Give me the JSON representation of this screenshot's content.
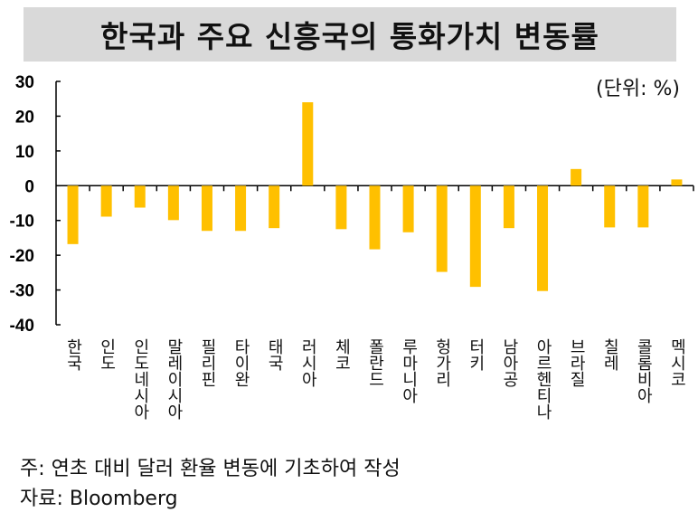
{
  "chart_data": {
    "type": "bar",
    "title": "한국과 주요 신흥국의 통화가치 변동률",
    "unit_label": "(단위: %)",
    "categories": [
      "한국",
      "인도",
      "인도네시아",
      "말레이시아",
      "필리핀",
      "타이완",
      "태국",
      "러시아",
      "체코",
      "폴란드",
      "루마니아",
      "헝가리",
      "터키",
      "남아공",
      "아르헨티나",
      "브라질",
      "칠레",
      "콜롬비아",
      "멕시코"
    ],
    "values": [
      -16.8,
      -8.9,
      -6.3,
      -9.9,
      -13.0,
      -13.0,
      -12.2,
      24.0,
      -12.5,
      -18.3,
      -13.4,
      -24.8,
      -29.1,
      -12.2,
      -30.3,
      4.8,
      -12.0,
      -12.0,
      1.8
    ],
    "ylim": [
      -40,
      30
    ],
    "yticks": [
      30,
      20,
      10,
      0,
      -10,
      -20,
      -30,
      -40
    ],
    "grid": false,
    "bar_color": "#ffc000",
    "xlabel": "",
    "ylabel": ""
  },
  "notes": {
    "note": "주: 연초 대비 달러 환율 변동에 기초하여 작성",
    "source": "자료: Bloomberg"
  }
}
